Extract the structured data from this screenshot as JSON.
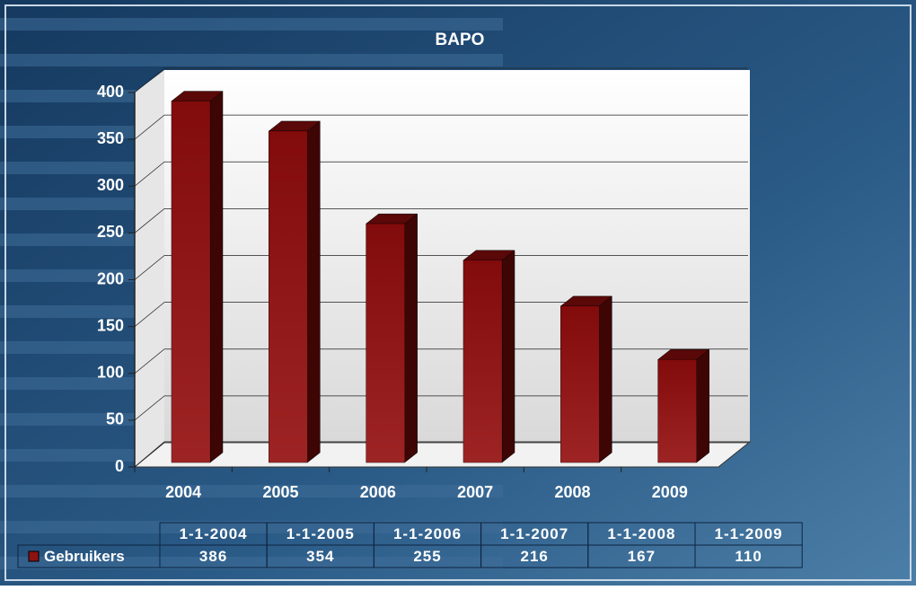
{
  "chart_data": {
    "type": "bar",
    "title": "BAPO",
    "categories": [
      "2004",
      "2005",
      "2006",
      "2007",
      "2008",
      "2009"
    ],
    "table": {
      "columns": [
        "1-1-2004",
        "1-1-2005",
        "1-1-2006",
        "1-1-2007",
        "1-1-2008",
        "1-1-2009"
      ]
    },
    "series": [
      {
        "name": "Gebruikers",
        "color": "#8e1212",
        "values": [
          386,
          354,
          255,
          216,
          167,
          110
        ]
      }
    ],
    "ylim": [
      0,
      400
    ],
    "yticks": [
      0,
      50,
      100,
      150,
      200,
      250,
      300,
      350,
      400
    ],
    "grid": true
  }
}
